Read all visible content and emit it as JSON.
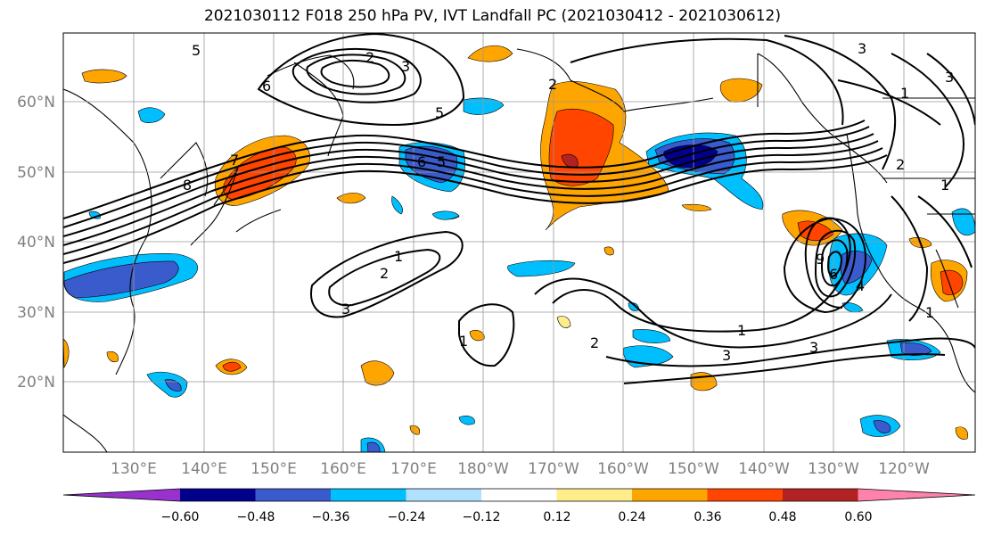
{
  "title": "2021030112 F018 250 hPa PV, IVT Landfall PC (2021030412 - 2021030612)",
  "lon_labels": [
    "130°E",
    "140°E",
    "150°E",
    "160°E",
    "170°E",
    "180°W",
    "170°W",
    "160°W",
    "150°W",
    "140°W",
    "130°W",
    "120°W"
  ],
  "lat_labels": [
    "60°N",
    "50°N",
    "40°N",
    "30°N",
    "20°N"
  ],
  "colorbar": {
    "ticks": [
      "−0.60",
      "−0.48",
      "−0.36",
      "−0.24",
      "−0.12",
      "0.12",
      "0.24",
      "0.36",
      "0.48",
      "0.60"
    ],
    "colors": [
      "#9932cc",
      "#00008b",
      "#3a5bcc",
      "#00bfff",
      "#b0e2ff",
      "#ffffff",
      "#ffec8b",
      "#ffa500",
      "#ff4500",
      "#b22222",
      "#ff82ab"
    ]
  },
  "contour_labels": [
    "5",
    "6",
    "2",
    "3",
    "5",
    "8",
    "7",
    "6",
    "5",
    "1",
    "2",
    "3",
    "1",
    "2",
    "3",
    "1",
    "2",
    "3",
    "1",
    "9",
    "6",
    "4",
    "3",
    "2",
    "1",
    "3",
    "1"
  ]
}
